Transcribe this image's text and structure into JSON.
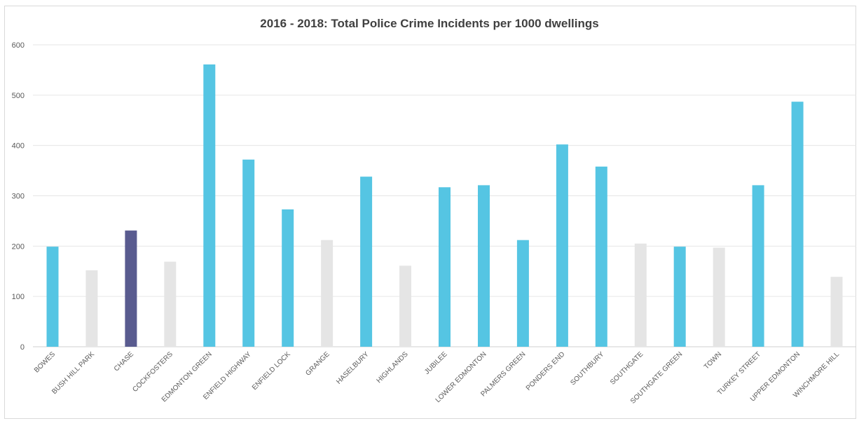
{
  "chart_data": {
    "type": "bar",
    "title": "2016 - 2018: Total Police Crime Incidents per 1000 dwellings",
    "xlabel": "",
    "ylabel": "",
    "ylim": [
      0,
      600
    ],
    "yticks": [
      0,
      100,
      200,
      300,
      400,
      500,
      600
    ],
    "grid": true,
    "legend": "none",
    "categories": [
      "BOWES",
      "BUSH HILL PARK",
      "CHASE",
      "COCKFOSTERS",
      "EDMONTON GREEN",
      "ENFIELD HIGHWAY",
      "ENFIELD LOCK",
      "GRANGE",
      "HASELBURY",
      "HIGHLANDS",
      "JUBILEE",
      "LOWER EDMONTON",
      "PALMERS GREEN",
      "PONDERS END",
      "SOUTHBURY",
      "SOUTHGATE",
      "SOUTHGATE GREEN",
      "TOWN",
      "TURKEY STREET",
      "UPPER EDMONTON",
      "WINCHMORE HILL"
    ],
    "values": [
      199,
      152,
      231,
      169,
      561,
      372,
      273,
      212,
      338,
      161,
      317,
      321,
      212,
      402,
      358,
      205,
      199,
      197,
      321,
      487,
      139
    ],
    "bar_colors": [
      "#55c5e3",
      "#e5e5e5",
      "#595b8f",
      "#e5e5e5",
      "#55c5e3",
      "#55c5e3",
      "#55c5e3",
      "#e5e5e5",
      "#55c5e3",
      "#e5e5e5",
      "#55c5e3",
      "#55c5e3",
      "#55c5e3",
      "#55c5e3",
      "#55c5e3",
      "#e5e5e5",
      "#55c5e3",
      "#e5e5e5",
      "#55c5e3",
      "#55c5e3",
      "#e5e5e5"
    ]
  }
}
